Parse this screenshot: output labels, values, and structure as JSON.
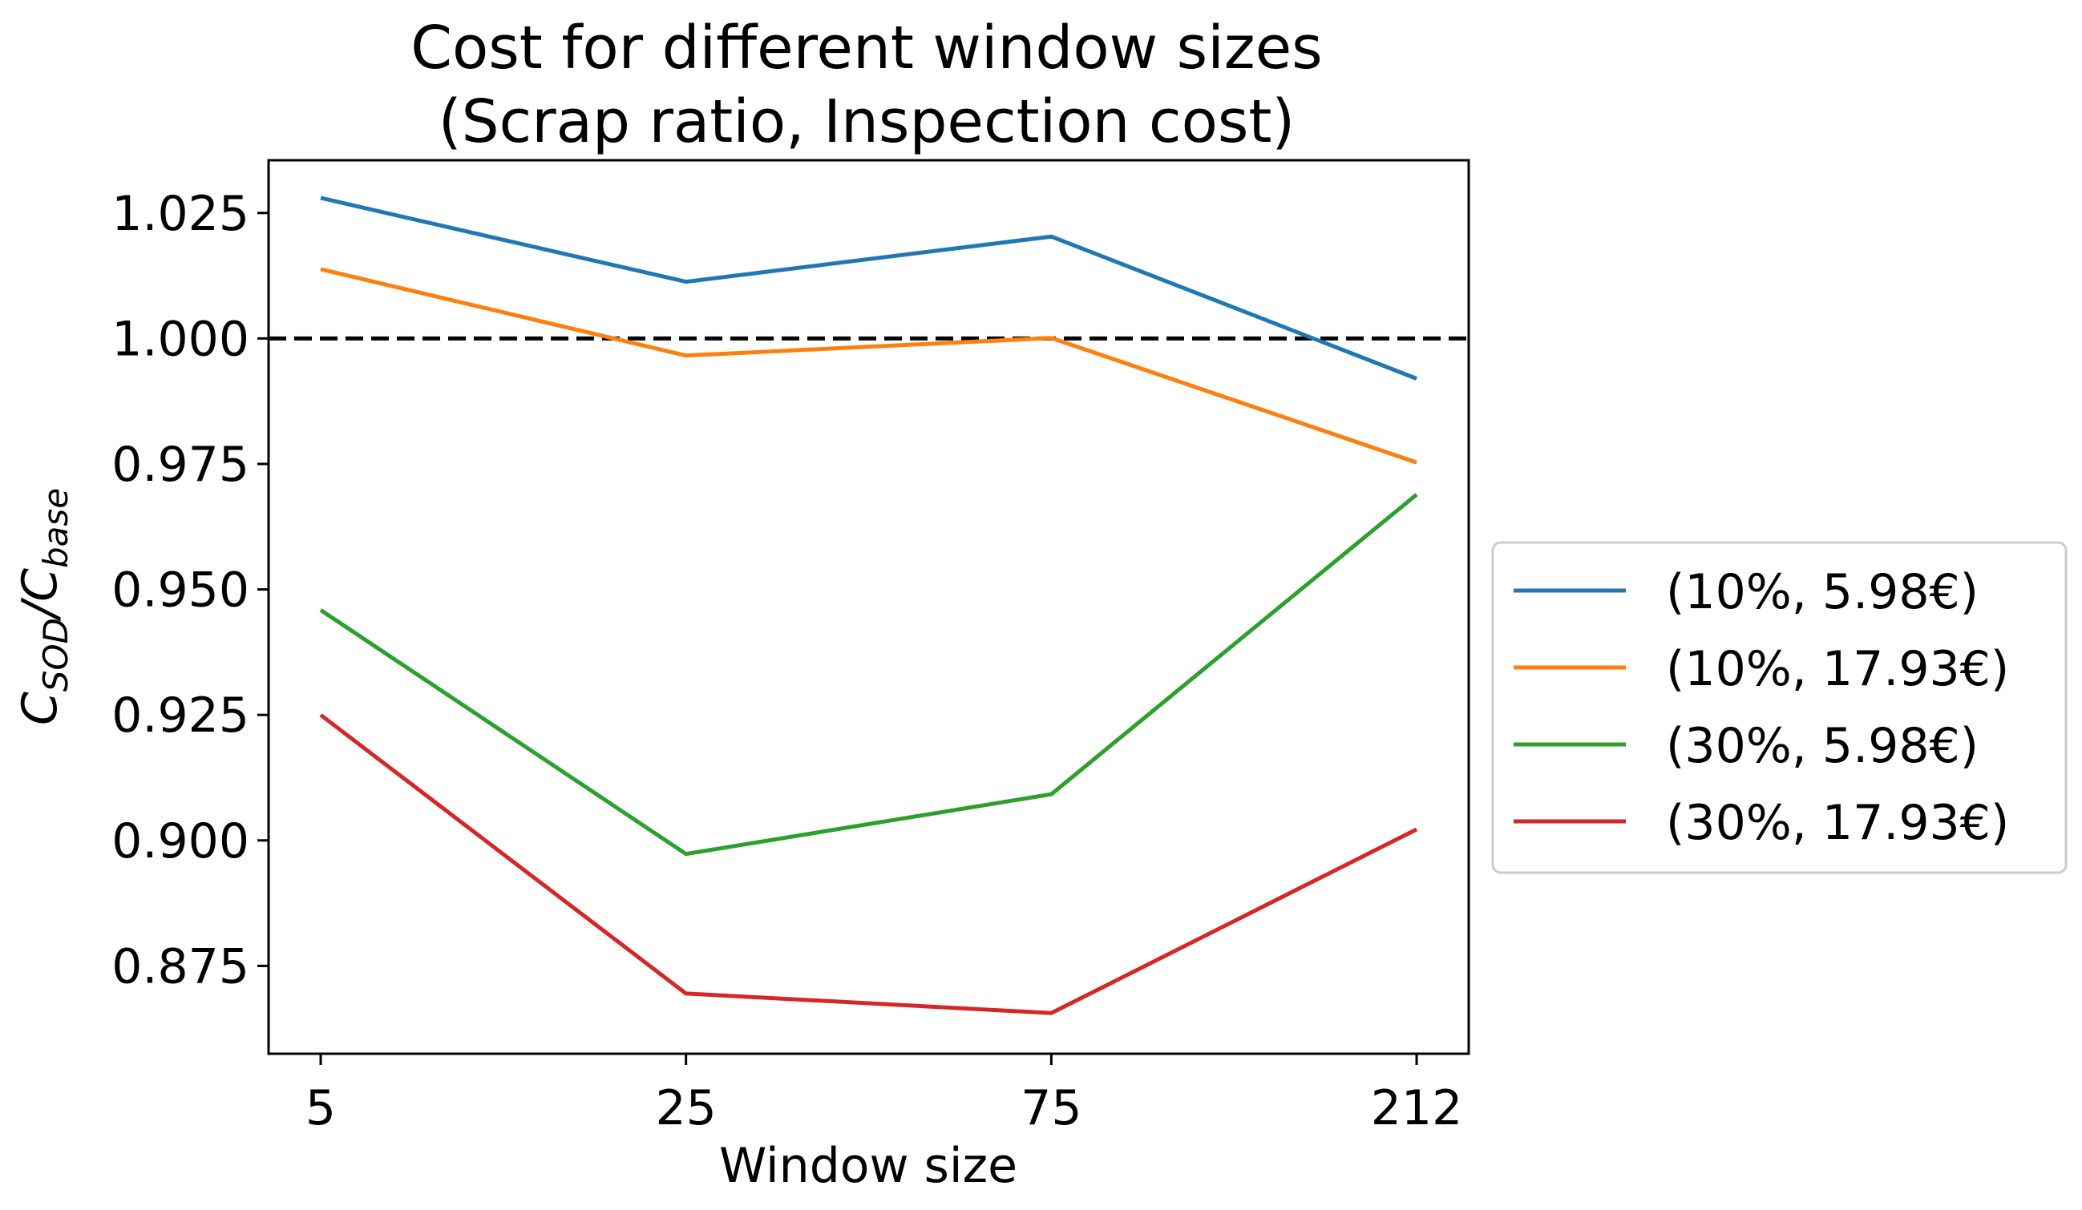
{
  "chart_data": {
    "type": "line",
    "title_line1": "Cost for different window sizes",
    "title_line2": "(Scrap ratio, Inspection cost)",
    "xlabel": "Window size",
    "ylabel_base": "C",
    "ylabel_sub1": "SOD",
    "ylabel_slash": "/C",
    "ylabel_sub2": "base",
    "categories": [
      "5",
      "25",
      "75",
      "212"
    ],
    "yticks": [
      0.875,
      0.9,
      0.925,
      0.95,
      0.975,
      1.0,
      1.025
    ],
    "ytick_labels": [
      "0.875",
      "0.900",
      "0.925",
      "0.950",
      "0.975",
      "1.000",
      "1.025"
    ],
    "ylim": [
      0.8575,
      1.0355
    ],
    "reference_line": {
      "y": 1.0,
      "style": "dashed",
      "color": "#000000"
    },
    "series": [
      {
        "name": "(10%, 5.98€)",
        "color": "#1f77b4",
        "values": [
          1.028,
          1.0113,
          1.0203,
          0.992
        ]
      },
      {
        "name": "(10%, 17.93€)",
        "color": "#ff7f0e",
        "values": [
          1.0138,
          0.9966,
          1.0001,
          0.9753
        ]
      },
      {
        "name": "(30%, 5.98€)",
        "color": "#2ca02c",
        "values": [
          0.9459,
          0.8973,
          0.9092,
          0.9689
        ]
      },
      {
        "name": "(30%, 17.93€)",
        "color": "#d62728",
        "values": [
          0.925,
          0.8695,
          0.8656,
          0.9022
        ]
      }
    ],
    "legend_position": "center-right outside"
  }
}
